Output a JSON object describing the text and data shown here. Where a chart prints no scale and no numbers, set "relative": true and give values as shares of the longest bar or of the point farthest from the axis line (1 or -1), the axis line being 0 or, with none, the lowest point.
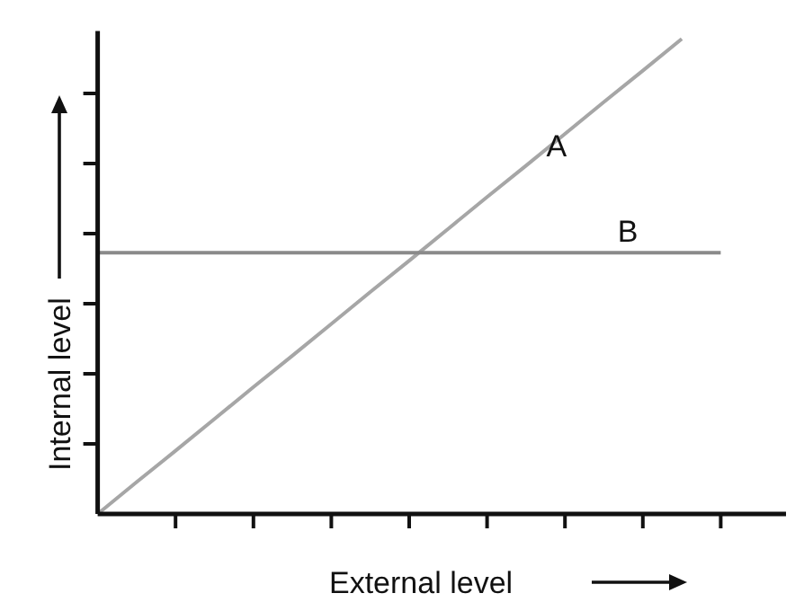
{
  "chart_data": {
    "type": "line",
    "xlabel": "External level",
    "ylabel": "Internal level",
    "relative": true,
    "categories": [
      null,
      null,
      null,
      null,
      null,
      null,
      null,
      null,
      null,
      null,
      null,
      null,
      null,
      null,
      null,
      null,
      null
    ],
    "series": [
      {
        "name": "A",
        "color": "#a6a6a6",
        "values": [
          0,
          0.067,
          0.133,
          0.2,
          0.267,
          0.333,
          0.4,
          0.467,
          0.533,
          0.6,
          0.667,
          0.733,
          0.8,
          0.867,
          0.933,
          1,
          null
        ]
      },
      {
        "name": "B",
        "color": "#8a8a8a",
        "values": [
          0.55,
          0.55,
          0.55,
          0.55,
          0.55,
          0.55,
          0.55,
          0.55,
          0.55,
          0.55,
          0.55,
          0.55,
          0.55,
          0.55,
          0.55,
          0.55,
          0.55
        ]
      }
    ]
  }
}
